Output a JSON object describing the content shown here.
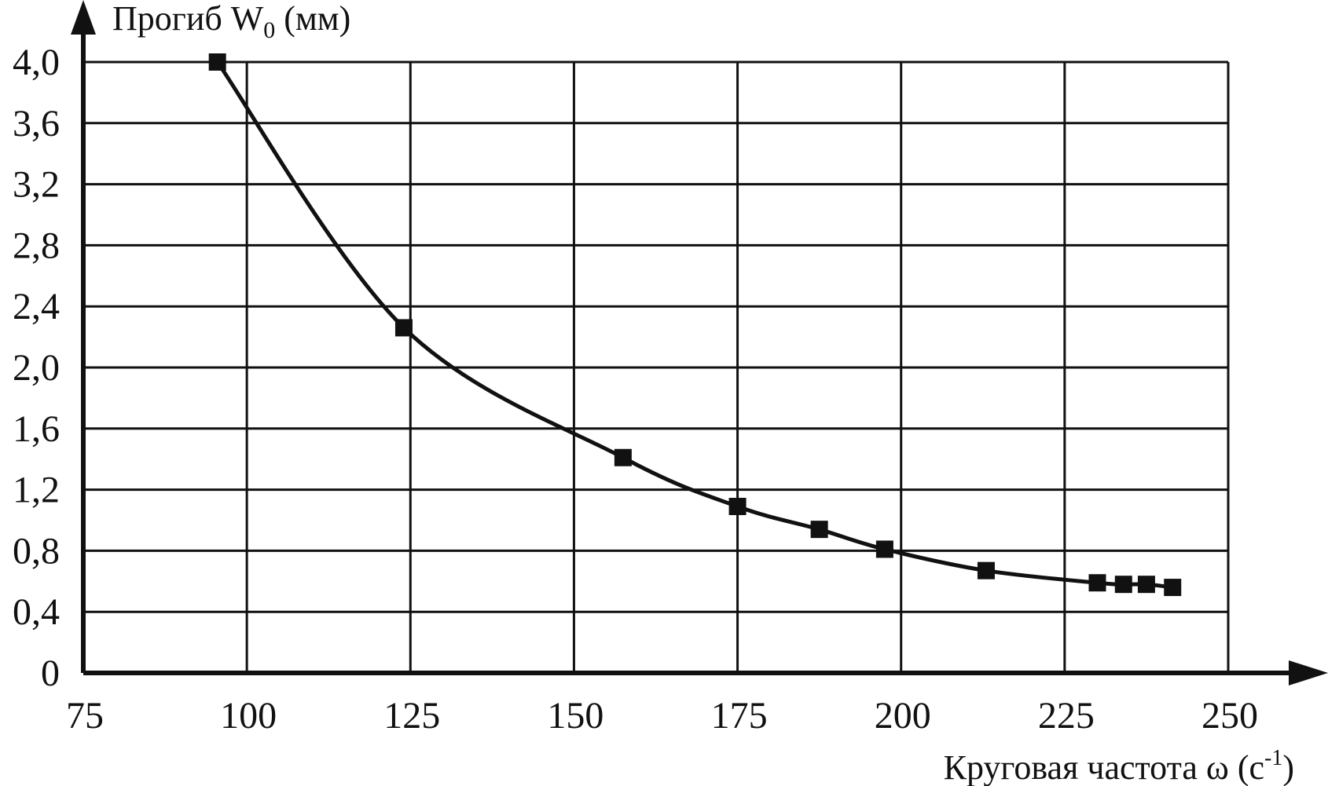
{
  "chart_data": {
    "type": "line",
    "ylabel": {
      "main": "Прогиб W",
      "sub": "0",
      "unit": " (мм)"
    },
    "xlabel": {
      "main": "Круговая частота ω   (c",
      "sup": "-1",
      "tail": ")"
    },
    "xlim": [
      75,
      250
    ],
    "ylim": [
      0,
      4.0
    ],
    "x_ticks": [
      {
        "value": 75,
        "label": "75"
      },
      {
        "value": 100,
        "label": "100"
      },
      {
        "value": 125,
        "label": "125"
      },
      {
        "value": 150,
        "label": "150"
      },
      {
        "value": 175,
        "label": "175"
      },
      {
        "value": 200,
        "label": "200"
      },
      {
        "value": 225,
        "label": "225"
      },
      {
        "value": 250,
        "label": "250"
      }
    ],
    "y_ticks": [
      {
        "value": 0,
        "label": "0"
      },
      {
        "value": 0.4,
        "label": "0,4"
      },
      {
        "value": 0.8,
        "label": "0,8"
      },
      {
        "value": 1.2,
        "label": "1,2"
      },
      {
        "value": 1.6,
        "label": "1,6"
      },
      {
        "value": 2.0,
        "label": "2,0"
      },
      {
        "value": 2.4,
        "label": "2,4"
      },
      {
        "value": 2.8,
        "label": "2,8"
      },
      {
        "value": 3.2,
        "label": "3,2"
      },
      {
        "value": 3.6,
        "label": "3,6"
      },
      {
        "value": 4.0,
        "label": "4,0"
      }
    ],
    "grid": true,
    "series": [
      {
        "marker": "square",
        "color": "#111111",
        "x": [
          95.5,
          124,
          157.5,
          175,
          187.5,
          197.5,
          213,
          230,
          234,
          237.5,
          241.5
        ],
        "y": [
          4.0,
          2.26,
          1.41,
          1.09,
          0.94,
          0.81,
          0.67,
          0.59,
          0.58,
          0.58,
          0.56
        ]
      }
    ]
  }
}
